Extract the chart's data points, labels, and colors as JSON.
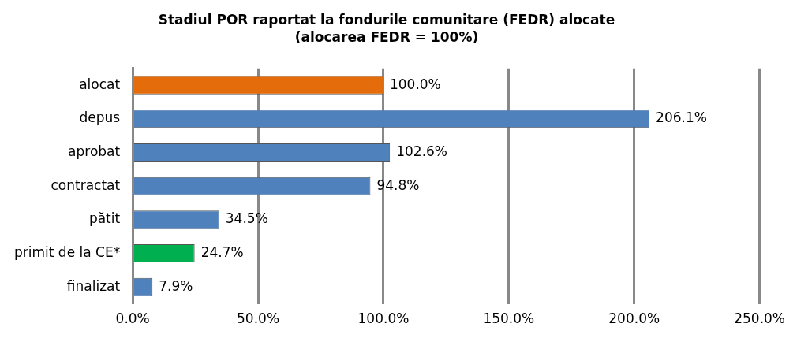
{
  "chart_data": {
    "type": "bar",
    "orientation": "horizontal",
    "title": "Stadiul POR raportat la fondurile comunitare (FEDR) alocate",
    "subtitle": "(alocarea FEDR = 100%)",
    "categories": [
      "alocat",
      "depus",
      "aprobat",
      "contractat",
      "pătit",
      "primit de la CE*",
      "finalizat"
    ],
    "values": [
      100.0,
      206.1,
      102.6,
      94.8,
      34.5,
      24.7,
      7.9
    ],
    "colors": [
      "#e46c0a",
      "#4f81bd",
      "#4f81bd",
      "#4f81bd",
      "#4f81bd",
      "#00b050",
      "#4f81bd"
    ],
    "value_labels": [
      "100.0%",
      "206.1%",
      "102.6%",
      "94.8%",
      "34.5%",
      "24.7%",
      "7.9%"
    ],
    "xlim": [
      0,
      250
    ],
    "xticks": [
      {
        "value": 0,
        "label": "0.0%"
      },
      {
        "value": 50,
        "label": "50.0%"
      },
      {
        "value": 100,
        "label": "100.0%"
      },
      {
        "value": 150,
        "label": "150.0%"
      },
      {
        "value": 200,
        "label": "200.0%"
      },
      {
        "value": 250,
        "label": "250.0%"
      }
    ],
    "grid": "x",
    "legend": false
  }
}
